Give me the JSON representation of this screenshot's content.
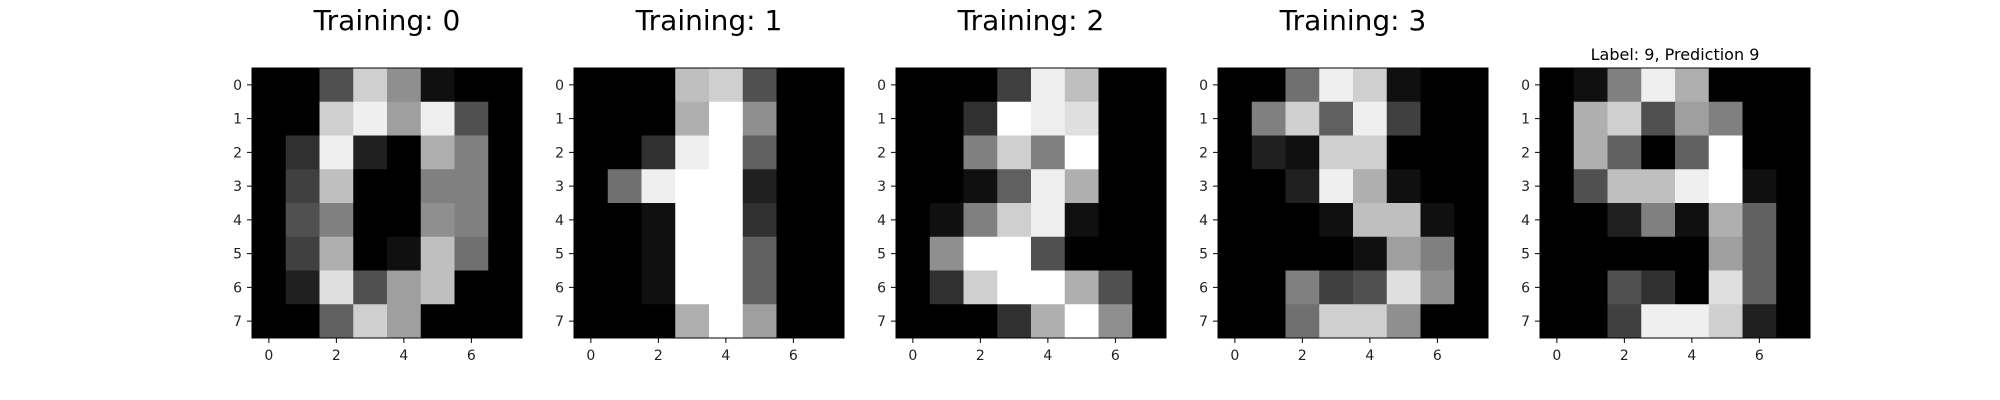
{
  "chart_data": [
    {
      "type": "heatmap",
      "title": "Training: 0",
      "colormap": "gray_r",
      "value_range": [
        0,
        16
      ],
      "x_ticks": [
        0,
        2,
        4,
        6
      ],
      "y_ticks": [
        0,
        1,
        2,
        3,
        4,
        5,
        6,
        7
      ],
      "xlim": [
        -0.5,
        7.5
      ],
      "ylim": [
        7.5,
        -0.5
      ],
      "grid": false,
      "values": [
        [
          0,
          0,
          5,
          13,
          9,
          1,
          0,
          0
        ],
        [
          0,
          0,
          13,
          15,
          10,
          15,
          5,
          0
        ],
        [
          0,
          3,
          15,
          2,
          0,
          11,
          8,
          0
        ],
        [
          0,
          4,
          12,
          0,
          0,
          8,
          8,
          0
        ],
        [
          0,
          5,
          8,
          0,
          0,
          9,
          8,
          0
        ],
        [
          0,
          4,
          11,
          0,
          1,
          12,
          7,
          0
        ],
        [
          0,
          2,
          14,
          5,
          10,
          12,
          0,
          0
        ],
        [
          0,
          0,
          6,
          13,
          10,
          0,
          0,
          0
        ]
      ]
    },
    {
      "type": "heatmap",
      "title": "Training: 1",
      "colormap": "gray_r",
      "value_range": [
        0,
        16
      ],
      "x_ticks": [
        0,
        2,
        4,
        6
      ],
      "y_ticks": [
        0,
        1,
        2,
        3,
        4,
        5,
        6,
        7
      ],
      "xlim": [
        -0.5,
        7.5
      ],
      "ylim": [
        7.5,
        -0.5
      ],
      "grid": false,
      "values": [
        [
          0,
          0,
          0,
          12,
          13,
          5,
          0,
          0
        ],
        [
          0,
          0,
          0,
          11,
          16,
          9,
          0,
          0
        ],
        [
          0,
          0,
          3,
          15,
          16,
          6,
          0,
          0
        ],
        [
          0,
          7,
          15,
          16,
          16,
          2,
          0,
          0
        ],
        [
          0,
          0,
          1,
          16,
          16,
          3,
          0,
          0
        ],
        [
          0,
          0,
          1,
          16,
          16,
          6,
          0,
          0
        ],
        [
          0,
          0,
          1,
          16,
          16,
          6,
          0,
          0
        ],
        [
          0,
          0,
          0,
          11,
          16,
          10,
          0,
          0
        ]
      ]
    },
    {
      "type": "heatmap",
      "title": "Training: 2",
      "colormap": "gray_r",
      "value_range": [
        0,
        16
      ],
      "x_ticks": [
        0,
        2,
        4,
        6
      ],
      "y_ticks": [
        0,
        1,
        2,
        3,
        4,
        5,
        6,
        7
      ],
      "xlim": [
        -0.5,
        7.5
      ],
      "ylim": [
        7.5,
        -0.5
      ],
      "grid": false,
      "values": [
        [
          0,
          0,
          0,
          4,
          15,
          12,
          0,
          0
        ],
        [
          0,
          0,
          3,
          16,
          15,
          14,
          0,
          0
        ],
        [
          0,
          0,
          8,
          13,
          8,
          16,
          0,
          0
        ],
        [
          0,
          0,
          1,
          6,
          15,
          11,
          0,
          0
        ],
        [
          0,
          1,
          8,
          13,
          15,
          1,
          0,
          0
        ],
        [
          0,
          9,
          16,
          16,
          5,
          0,
          0,
          0
        ],
        [
          0,
          3,
          13,
          16,
          16,
          11,
          5,
          0
        ],
        [
          0,
          0,
          0,
          3,
          11,
          16,
          9,
          0
        ]
      ]
    },
    {
      "type": "heatmap",
      "title": "Training: 3",
      "colormap": "gray_r",
      "value_range": [
        0,
        16
      ],
      "x_ticks": [
        0,
        2,
        4,
        6
      ],
      "y_ticks": [
        0,
        1,
        2,
        3,
        4,
        5,
        6,
        7
      ],
      "xlim": [
        -0.5,
        7.5
      ],
      "ylim": [
        7.5,
        -0.5
      ],
      "grid": false,
      "values": [
        [
          0,
          0,
          7,
          15,
          13,
          1,
          0,
          0
        ],
        [
          0,
          8,
          13,
          6,
          15,
          4,
          0,
          0
        ],
        [
          0,
          2,
          1,
          13,
          13,
          0,
          0,
          0
        ],
        [
          0,
          0,
          2,
          15,
          11,
          1,
          0,
          0
        ],
        [
          0,
          0,
          0,
          1,
          12,
          12,
          1,
          0
        ],
        [
          0,
          0,
          0,
          0,
          1,
          10,
          8,
          0
        ],
        [
          0,
          0,
          8,
          4,
          5,
          14,
          9,
          0
        ],
        [
          0,
          0,
          7,
          13,
          13,
          9,
          0,
          0
        ]
      ]
    },
    {
      "type": "heatmap",
      "title": "Label: 9, Prediction 9",
      "colormap": "gray_r",
      "value_range": [
        0,
        16
      ],
      "x_ticks": [
        0,
        2,
        4,
        6
      ],
      "y_ticks": [
        0,
        1,
        2,
        3,
        4,
        5,
        6,
        7
      ],
      "xlim": [
        -0.5,
        7.5
      ],
      "ylim": [
        7.5,
        -0.5
      ],
      "grid": false,
      "values": [
        [
          0,
          1,
          8,
          15,
          11,
          0,
          0,
          0
        ],
        [
          0,
          11,
          13,
          5,
          10,
          8,
          0,
          0
        ],
        [
          0,
          11,
          6,
          0,
          6,
          16,
          0,
          0
        ],
        [
          0,
          5,
          12,
          12,
          15,
          16,
          1,
          0
        ],
        [
          0,
          0,
          2,
          8,
          1,
          11,
          6,
          0
        ],
        [
          0,
          0,
          0,
          0,
          0,
          10,
          6,
          0
        ],
        [
          0,
          0,
          5,
          3,
          0,
          14,
          6,
          0
        ],
        [
          0,
          0,
          4,
          15,
          15,
          13,
          2,
          0
        ]
      ]
    }
  ]
}
